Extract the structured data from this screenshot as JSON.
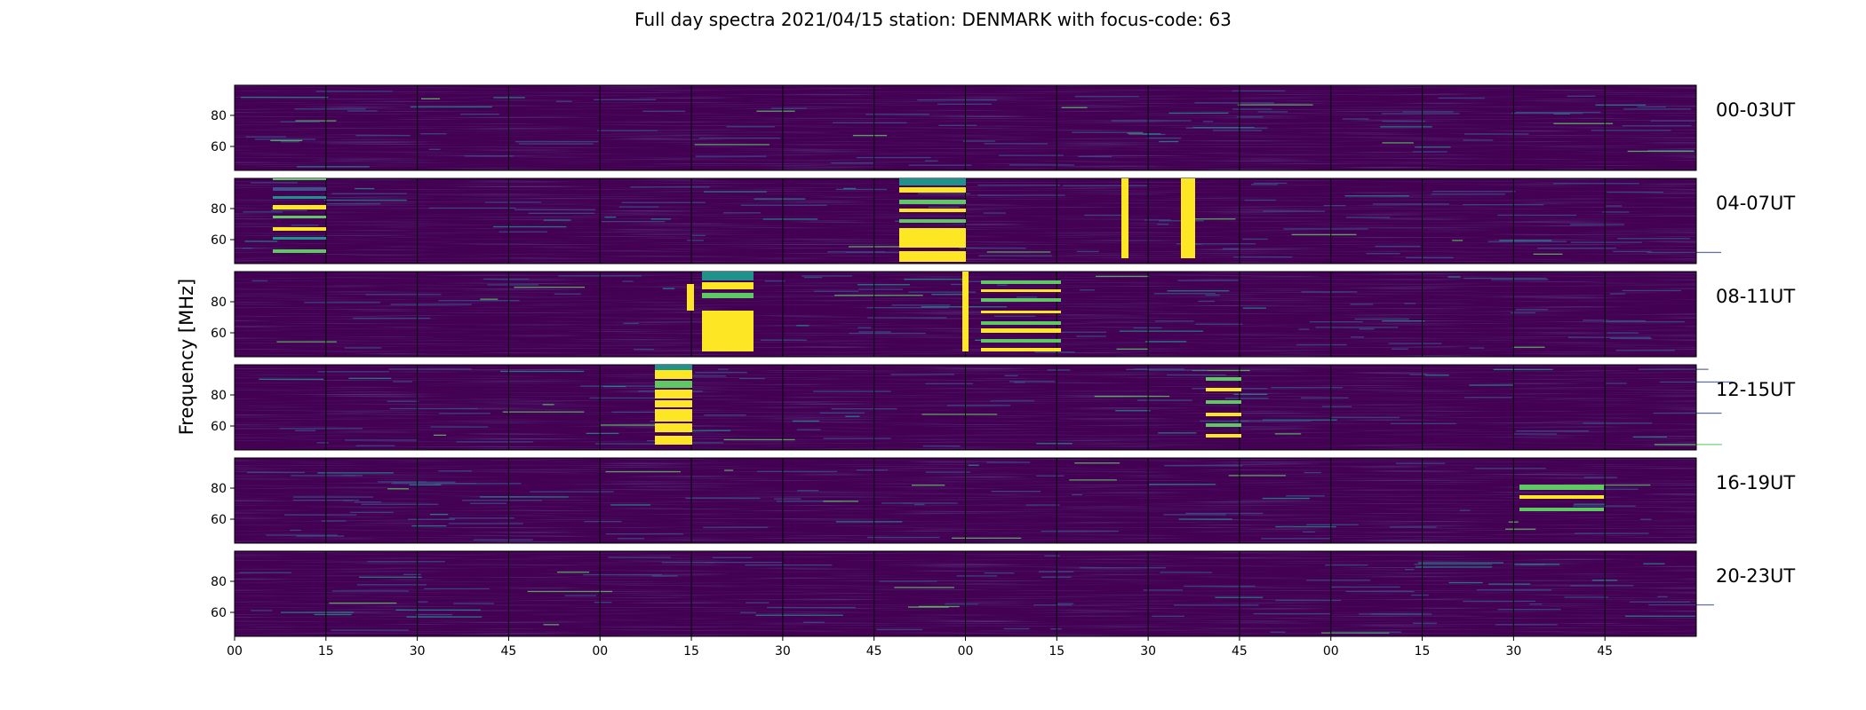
{
  "chart_data": {
    "type": "heatmap",
    "title": "Full day spectra 2021/04/15 station: DENMARK with focus-code: 63",
    "ylabel": "Frequency [MHz]",
    "xlabel": "",
    "y_ticks": [
      "60",
      "80"
    ],
    "x_ticks": [
      "00",
      "15",
      "30",
      "45",
      "00",
      "15",
      "30",
      "45",
      "00",
      "15",
      "30",
      "45",
      "00",
      "15",
      "30",
      "45"
    ],
    "colormap": [
      "#440154",
      "#3b528b",
      "#21918c",
      "#5ec962",
      "#fde725"
    ],
    "rows": [
      {
        "label": "00-03UT"
      },
      {
        "label": "04-07UT"
      },
      {
        "label": "08-11UT"
      },
      {
        "label": "12-15UT"
      },
      {
        "label": "16-19UT"
      },
      {
        "label": "20-23UT"
      }
    ]
  }
}
